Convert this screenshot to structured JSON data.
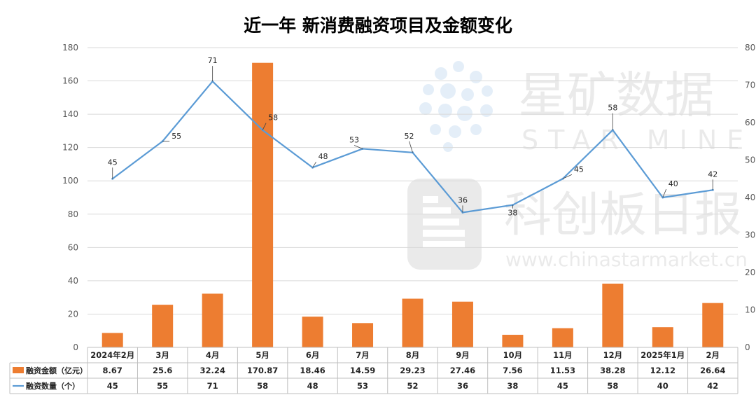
{
  "chart_data": {
    "type": "bar-line-combo",
    "title": "近一年 新消费融资项目及金额变化",
    "categories": [
      "2024年2月",
      "3月",
      "4月",
      "5月",
      "6月",
      "7月",
      "8月",
      "9月",
      "10月",
      "11月",
      "12月",
      "2025年1月",
      "2月"
    ],
    "series": [
      {
        "name": "融资金额（亿元）",
        "type": "bar",
        "axis": "left",
        "color": "#ED7D31",
        "values": [
          8.67,
          25.6,
          32.24,
          170.87,
          18.46,
          14.59,
          29.23,
          27.46,
          7.56,
          11.53,
          38.28,
          12.12,
          26.64
        ]
      },
      {
        "name": "融资数量（个）",
        "type": "line",
        "axis": "right",
        "color": "#5B9BD5",
        "values": [
          45,
          55,
          71,
          58,
          48,
          53,
          52,
          36,
          38,
          45,
          58,
          40,
          42
        ]
      }
    ],
    "y_left": {
      "min": 0,
      "max": 180,
      "ticks": [
        0,
        20,
        40,
        60,
        80,
        100,
        120,
        140,
        160,
        180
      ]
    },
    "y_right": {
      "min": 0,
      "max": 80,
      "ticks": [
        0,
        10,
        20,
        30,
        40,
        50,
        60,
        70,
        80
      ]
    },
    "grid": true,
    "legend": "data-table-below",
    "data_table": true
  },
  "watermark": {
    "brand_cn": "星矿数据",
    "brand_en": "STAR MINE",
    "source_cn": "科创板日报",
    "source_url": "www.chinastarmarket.cn"
  },
  "colors": {
    "bar": "#ED7D31",
    "line": "#5B9BD5",
    "grid": "#d9d9d9",
    "axis_text": "#595959"
  }
}
